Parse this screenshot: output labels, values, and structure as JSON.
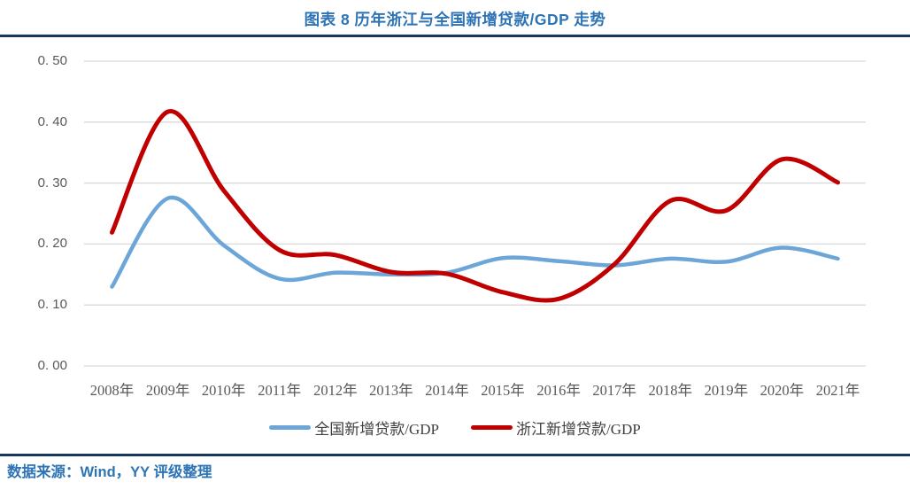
{
  "header": {
    "title": "图表 8 历年浙江与全国新增贷款/GDP 走势"
  },
  "footer": {
    "source": "数据来源：Wind，YY 评级整理"
  },
  "colors": {
    "title_blue": "#2E74B5",
    "rule_navy": "#17375E",
    "gridline": "#D9D9D9",
    "tick_text": "#595959",
    "national_series_blue": "#6CA6D9",
    "zhejiang_series_red": "#C00000"
  },
  "chart_data": {
    "type": "line",
    "smooth": true,
    "title": "图表 8 历年浙江与全国新增贷款/GDP 走势",
    "xlabel": "",
    "ylabel": "",
    "ylim": [
      0,
      0.5
    ],
    "grid": true,
    "legend_position": "bottom",
    "categories": [
      "2008年",
      "2009年",
      "2010年",
      "2011年",
      "2012年",
      "2013年",
      "2014年",
      "2015年",
      "2016年",
      "2017年",
      "2018年",
      "2019年",
      "2020年",
      "2021年"
    ],
    "series": [
      {
        "name": "全国新增贷款/GDP",
        "color": "#6CA6D9",
        "stroke_width": 4.5,
        "values": [
          0.13,
          0.275,
          0.198,
          0.143,
          0.153,
          0.15,
          0.153,
          0.177,
          0.172,
          0.165,
          0.176,
          0.171,
          0.194,
          0.176
        ]
      },
      {
        "name": "浙江新增贷款/GDP",
        "color": "#C00000",
        "stroke_width": 5,
        "values": [
          0.219,
          0.417,
          0.288,
          0.19,
          0.182,
          0.154,
          0.151,
          0.121,
          0.11,
          0.167,
          0.271,
          0.255,
          0.339,
          0.301
        ]
      }
    ],
    "y_ticks": [
      {
        "label": "0. 00",
        "value": 0.0
      },
      {
        "label": "0. 10",
        "value": 0.1
      },
      {
        "label": "0. 20",
        "value": 0.2
      },
      {
        "label": "0. 30",
        "value": 0.3
      },
      {
        "label": "0. 40",
        "value": 0.4
      },
      {
        "label": "0. 50",
        "value": 0.5
      }
    ]
  }
}
